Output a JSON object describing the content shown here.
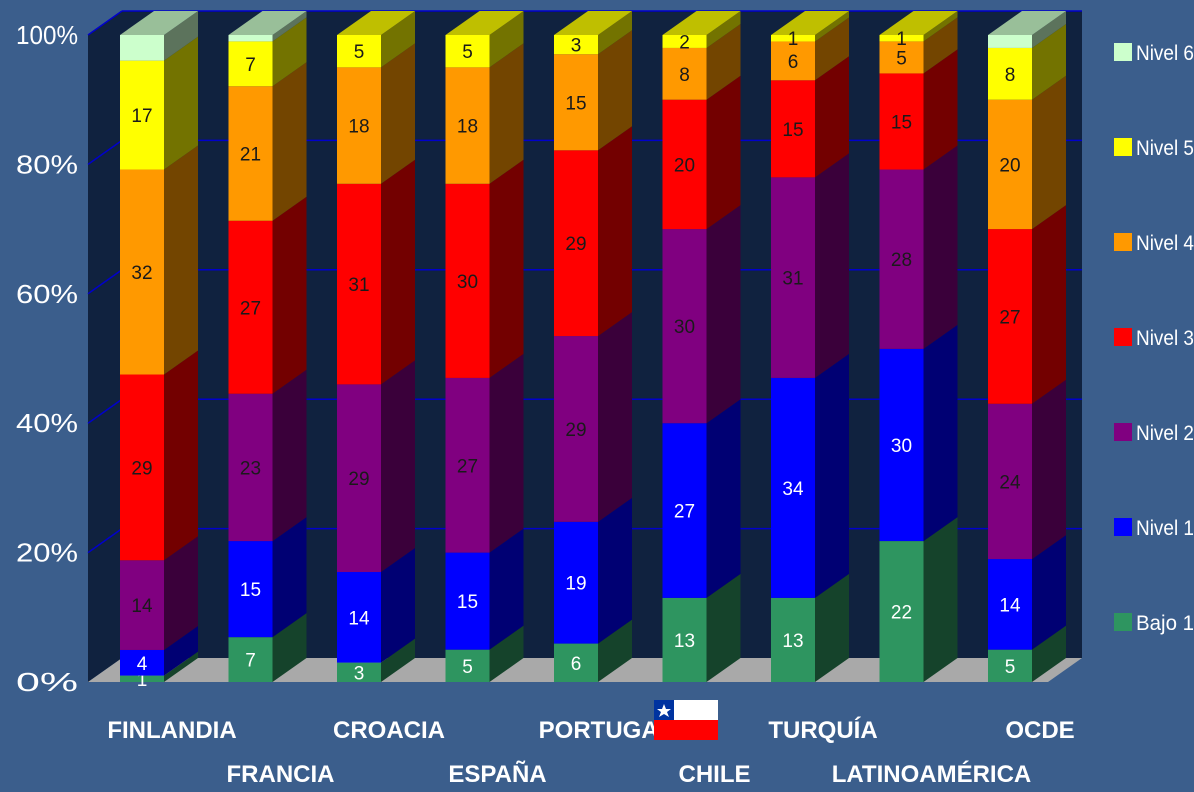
{
  "chart_data": {
    "type": "bar",
    "stacked": true,
    "percent_stacked": true,
    "three_d": true,
    "categories": [
      "FINLANDIA",
      "FRANCIA",
      "CROACIA",
      "ESPAÑA",
      "PORTUGAL",
      "CHILE",
      "TURQUÍA",
      "LATINOAMÉRICA",
      "OCDE"
    ],
    "series": [
      {
        "name": "Bajo 1",
        "color": "#2e9560",
        "values": [
          1,
          7,
          3,
          5,
          6,
          13,
          13,
          22,
          5
        ]
      },
      {
        "name": "Nivel 1",
        "color": "#0000ff",
        "values": [
          4,
          15,
          14,
          15,
          19,
          27,
          34,
          30,
          14
        ]
      },
      {
        "name": "Nivel 2",
        "color": "#800080",
        "values": [
          14,
          23,
          29,
          27,
          29,
          30,
          31,
          28,
          24
        ]
      },
      {
        "name": "Nivel 3",
        "color": "#ff0000",
        "values": [
          29,
          27,
          31,
          30,
          29,
          20,
          15,
          15,
          27
        ]
      },
      {
        "name": "Nivel 4",
        "color": "#ff9900",
        "values": [
          32,
          21,
          18,
          18,
          15,
          8,
          6,
          5,
          20
        ]
      },
      {
        "name": "Nivel 5",
        "color": "#ffff00",
        "values": [
          17,
          7,
          5,
          5,
          3,
          2,
          1,
          1,
          8
        ]
      },
      {
        "name": "Nivel 6",
        "color": "#ccffcc",
        "values": [
          4,
          1,
          0,
          0,
          0,
          0,
          0,
          0,
          2
        ]
      }
    ],
    "y_ticks": [
      "0%",
      "20%",
      "40%",
      "60%",
      "80%",
      "100%"
    ],
    "ylim": [
      0,
      100
    ],
    "grid": true,
    "legend_position": "right",
    "annotations": [
      "chile-flag"
    ]
  },
  "colors": {
    "background": "#3b5e8c",
    "back_wall": "#10223f",
    "floor": "#a9a9a9",
    "gridline": "#0000cc"
  },
  "icons": {
    "flag": "chile-flag-icon"
  }
}
